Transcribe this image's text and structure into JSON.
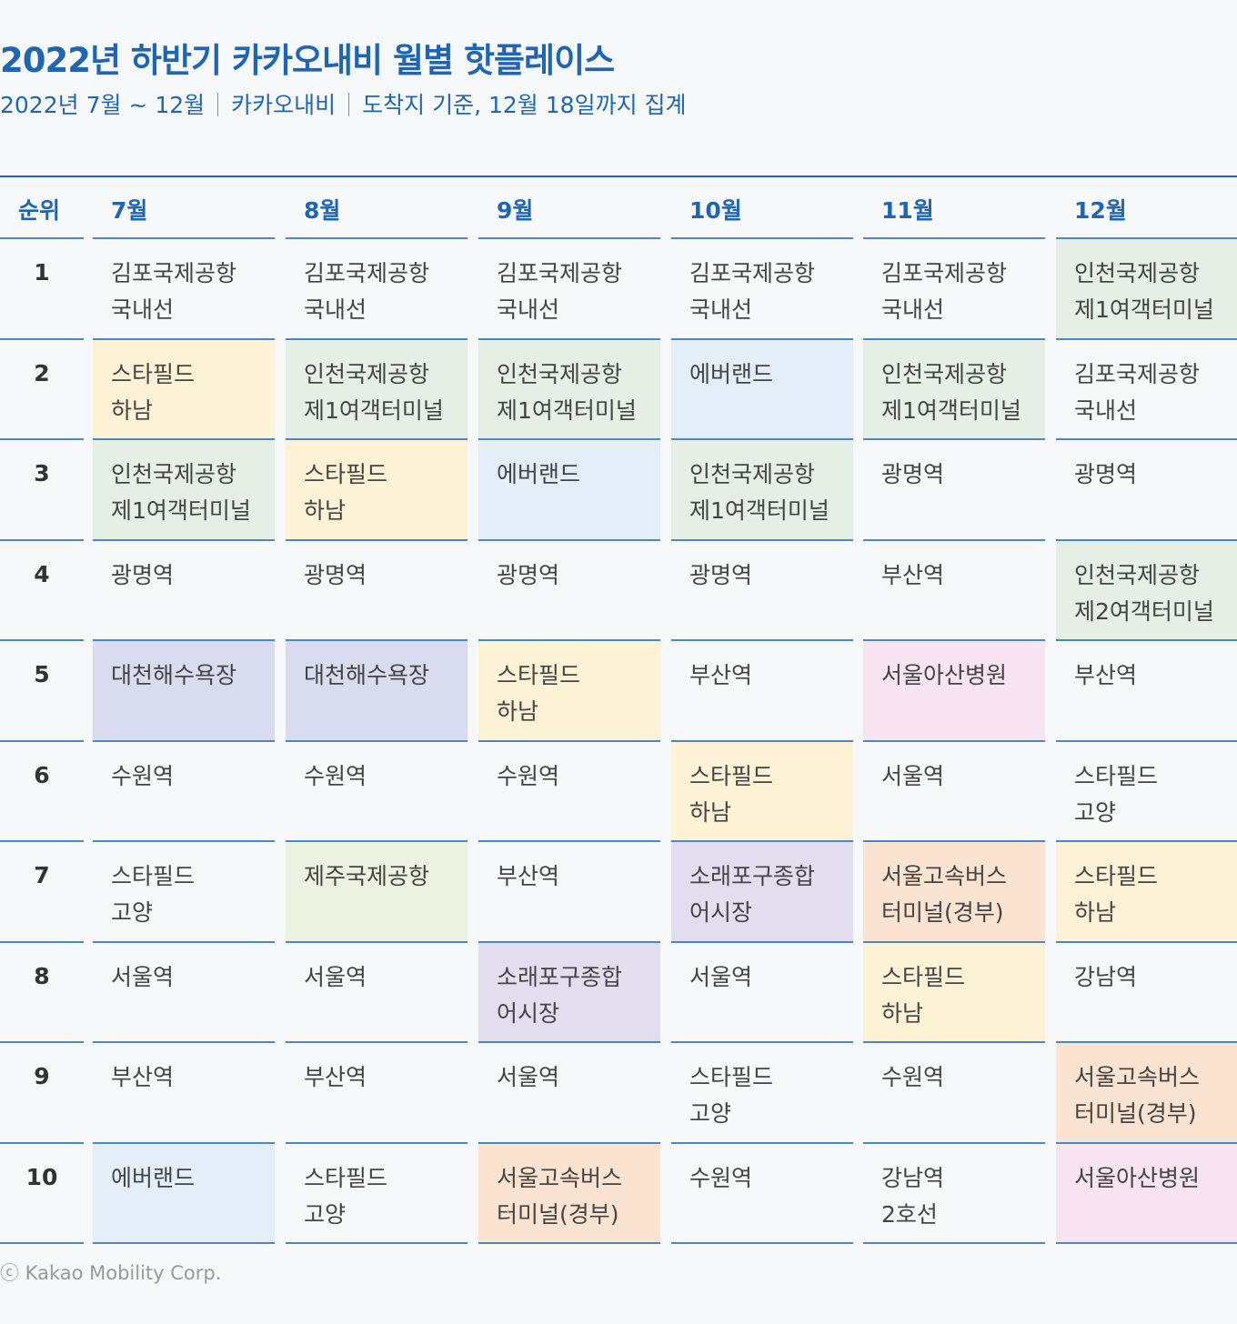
{
  "title": "2022년 하반기 카카오내비 월별 핫플레이스",
  "subtitle": {
    "period": "2022년 7월 ~ 12월",
    "source": "카카오내비",
    "note": "도착지 기준, 12월 18일까지 집계"
  },
  "footer": "ⓒ Kakao Mobility Corp.",
  "colors": {
    "accent": "#1e66b4",
    "yellow": "#fdf1d6",
    "green": "#e5efe6",
    "lightblue": "#e3eef8",
    "periwinkle": "#d8dcee",
    "pink": "#f8e4f1",
    "lightgreen": "#ecf2e2",
    "lavender": "#e2ddef",
    "peach": "#fbe3d1"
  },
  "chart_data": {
    "type": "table",
    "columns": [
      "순위",
      "7월",
      "8월",
      "9월",
      "10월",
      "11월",
      "12월"
    ],
    "ranks": [
      "1",
      "2",
      "3",
      "4",
      "5",
      "6",
      "7",
      "8",
      "9",
      "10"
    ],
    "rows": [
      [
        {
          "text": "김포국제공항\n국내선",
          "color": ""
        },
        {
          "text": "김포국제공항\n국내선",
          "color": ""
        },
        {
          "text": "김포국제공항\n국내선",
          "color": ""
        },
        {
          "text": "김포국제공항\n국내선",
          "color": ""
        },
        {
          "text": "김포국제공항\n국내선",
          "color": ""
        },
        {
          "text": "인천국제공항\n제1여객터미널",
          "color": "green"
        }
      ],
      [
        {
          "text": "스타필드\n하남",
          "color": "yellow"
        },
        {
          "text": "인천국제공항\n제1여객터미널",
          "color": "green"
        },
        {
          "text": "인천국제공항\n제1여객터미널",
          "color": "green"
        },
        {
          "text": "에버랜드",
          "color": "lightblue"
        },
        {
          "text": "인천국제공항\n제1여객터미널",
          "color": "green"
        },
        {
          "text": "김포국제공항\n국내선",
          "color": ""
        }
      ],
      [
        {
          "text": "인천국제공항\n제1여객터미널",
          "color": "green"
        },
        {
          "text": "스타필드\n하남",
          "color": "yellow"
        },
        {
          "text": "에버랜드",
          "color": "lightblue"
        },
        {
          "text": "인천국제공항\n제1여객터미널",
          "color": "green"
        },
        {
          "text": "광명역",
          "color": ""
        },
        {
          "text": "광명역",
          "color": ""
        }
      ],
      [
        {
          "text": "광명역",
          "color": ""
        },
        {
          "text": "광명역",
          "color": ""
        },
        {
          "text": "광명역",
          "color": ""
        },
        {
          "text": "광명역",
          "color": ""
        },
        {
          "text": "부산역",
          "color": ""
        },
        {
          "text": "인천국제공항\n제2여객터미널",
          "color": "green"
        }
      ],
      [
        {
          "text": "대천해수욕장",
          "color": "periwinkle"
        },
        {
          "text": "대천해수욕장",
          "color": "periwinkle"
        },
        {
          "text": "스타필드\n하남",
          "color": "yellow"
        },
        {
          "text": "부산역",
          "color": ""
        },
        {
          "text": "서울아산병원",
          "color": "pink"
        },
        {
          "text": "부산역",
          "color": ""
        }
      ],
      [
        {
          "text": "수원역",
          "color": ""
        },
        {
          "text": "수원역",
          "color": ""
        },
        {
          "text": "수원역",
          "color": ""
        },
        {
          "text": "스타필드\n하남",
          "color": "yellow"
        },
        {
          "text": "서울역",
          "color": ""
        },
        {
          "text": "스타필드\n고양",
          "color": ""
        }
      ],
      [
        {
          "text": "스타필드\n고양",
          "color": ""
        },
        {
          "text": "제주국제공항",
          "color": "lightgreen"
        },
        {
          "text": "부산역",
          "color": ""
        },
        {
          "text": "소래포구종합\n어시장",
          "color": "lavender"
        },
        {
          "text": "서울고속버스\n터미널(경부)",
          "color": "peach"
        },
        {
          "text": "스타필드\n하남",
          "color": "yellow"
        }
      ],
      [
        {
          "text": "서울역",
          "color": ""
        },
        {
          "text": "서울역",
          "color": ""
        },
        {
          "text": "소래포구종합\n어시장",
          "color": "lavender"
        },
        {
          "text": "서울역",
          "color": ""
        },
        {
          "text": "스타필드\n하남",
          "color": "yellow"
        },
        {
          "text": "강남역",
          "color": ""
        }
      ],
      [
        {
          "text": "부산역",
          "color": ""
        },
        {
          "text": "부산역",
          "color": ""
        },
        {
          "text": "서울역",
          "color": ""
        },
        {
          "text": "스타필드\n고양",
          "color": ""
        },
        {
          "text": "수원역",
          "color": ""
        },
        {
          "text": "서울고속버스\n터미널(경부)",
          "color": "peach"
        }
      ],
      [
        {
          "text": "에버랜드",
          "color": "lightblue"
        },
        {
          "text": "스타필드\n고양",
          "color": ""
        },
        {
          "text": "서울고속버스\n터미널(경부)",
          "color": "peach"
        },
        {
          "text": "수원역",
          "color": ""
        },
        {
          "text": "강남역\n2호선",
          "color": ""
        },
        {
          "text": "서울아산병원",
          "color": "pink"
        }
      ]
    ]
  }
}
